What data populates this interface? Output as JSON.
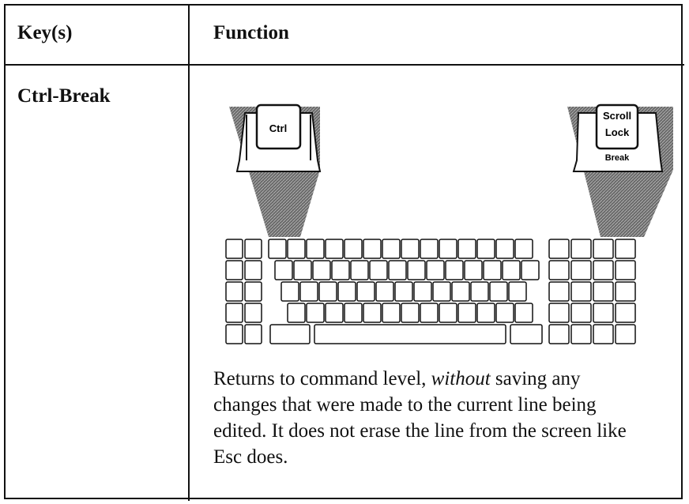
{
  "table": {
    "headers": [
      "Key(s)",
      "Function"
    ],
    "rows": [
      {
        "key": "Ctrl-Break",
        "illustration": {
          "left_key": "Ctrl",
          "right_key": [
            "Scroll",
            "Lock",
            "Break"
          ]
        },
        "description": [
          "Returns to command level, ",
          "without",
          " saving any changes that were made to the current line being edited. It does not erase the line from the screen like Esc does."
        ]
      }
    ]
  }
}
